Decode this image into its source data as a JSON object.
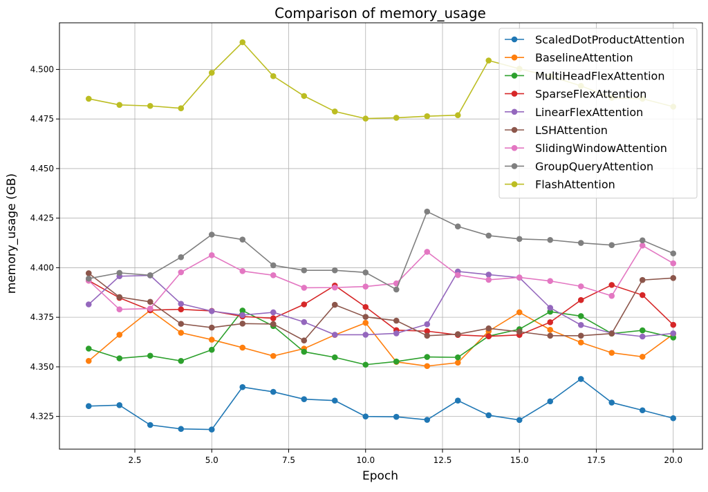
{
  "chart_data": {
    "type": "line",
    "title": "Comparison of memory_usage",
    "xlabel": "Epoch",
    "ylabel": "memory_usage (GB)",
    "xlim": [
      0.05,
      20.95
    ],
    "ylim": [
      4.3085,
      4.5235
    ],
    "xticks": [
      2.5,
      5.0,
      7.5,
      10.0,
      12.5,
      15.0,
      17.5,
      20.0
    ],
    "xtick_labels": [
      "2.5",
      "5.0",
      "7.5",
      "10.0",
      "12.5",
      "15.0",
      "17.5",
      "20.0"
    ],
    "yticks": [
      4.325,
      4.35,
      4.375,
      4.4,
      4.425,
      4.45,
      4.475,
      4.5
    ],
    "ytick_labels": [
      "4.325",
      "4.350",
      "4.375",
      "4.400",
      "4.425",
      "4.450",
      "4.475",
      "4.500"
    ],
    "grid": true,
    "legend_position": "top-right",
    "x": [
      1,
      2,
      3,
      4,
      5,
      6,
      7,
      8,
      9,
      10,
      11,
      12,
      13,
      14,
      15,
      16,
      17,
      18,
      19,
      20
    ],
    "series": [
      {
        "name": "ScaledDotProductAttention",
        "color": "#1f77b4",
        "values": [
          4.3302,
          4.3307,
          4.3207,
          4.3187,
          4.3184,
          4.3398,
          4.3374,
          4.3337,
          4.333,
          4.325,
          4.3248,
          4.3233,
          4.333,
          4.3256,
          4.3232,
          4.3326,
          4.3439,
          4.332,
          4.3281,
          4.3241
        ]
      },
      {
        "name": "BaselineAttention",
        "color": "#ff7f0e",
        "values": [
          4.353,
          4.3662,
          4.3785,
          4.3672,
          4.3637,
          4.3597,
          4.3555,
          4.3592,
          4.3661,
          4.3722,
          4.3525,
          4.3504,
          4.3521,
          4.368,
          4.3775,
          4.3687,
          4.3623,
          4.3571,
          4.3551,
          4.3665
        ]
      },
      {
        "name": "MultiHeadFlexAttention",
        "color": "#2ca02c",
        "values": [
          4.3592,
          4.3543,
          4.3556,
          4.353,
          4.3586,
          4.3784,
          4.3706,
          4.3576,
          4.3548,
          4.3511,
          4.3527,
          4.355,
          4.3548,
          4.3655,
          4.369,
          4.3778,
          4.3756,
          4.3668,
          4.3684,
          4.3648
        ]
      },
      {
        "name": "SparseFlexAttention",
        "color": "#d62728",
        "values": [
          4.3935,
          4.3848,
          4.3786,
          4.379,
          4.3782,
          4.3754,
          4.3745,
          4.3815,
          4.391,
          4.3802,
          4.3685,
          4.368,
          4.3661,
          4.3654,
          4.3661,
          4.3725,
          4.3837,
          4.3913,
          4.3862,
          4.3712
        ]
      },
      {
        "name": "LinearFlexAttention",
        "color": "#9467bd",
        "values": [
          4.3815,
          4.3957,
          4.3961,
          4.3818,
          4.3781,
          4.3761,
          4.3775,
          4.3726,
          4.3662,
          4.3662,
          4.3669,
          4.3715,
          4.3981,
          4.3965,
          4.395,
          4.3798,
          4.3711,
          4.367,
          4.3653,
          4.3669
        ]
      },
      {
        "name": "LSHAttention",
        "color": "#8c564b",
        "values": [
          4.3972,
          4.3852,
          4.3828,
          4.3717,
          4.3698,
          4.3718,
          4.3716,
          4.3633,
          4.3813,
          4.3752,
          4.3733,
          4.3657,
          4.3665,
          4.3694,
          4.3677,
          4.3657,
          4.3657,
          4.3668,
          4.3938,
          4.3948
        ]
      },
      {
        "name": "SlidingWindowAttention",
        "color": "#e377c2",
        "values": [
          4.3935,
          4.379,
          4.3794,
          4.3977,
          4.4063,
          4.3983,
          4.3962,
          4.3899,
          4.39,
          4.3905,
          4.3921,
          4.408,
          4.3963,
          4.3939,
          4.3951,
          4.3933,
          4.3906,
          4.3858,
          4.4112,
          4.4022
        ]
      },
      {
        "name": "GroupQueryAttention",
        "color": "#7f7f7f",
        "values": [
          4.3945,
          4.3974,
          4.3962,
          4.4053,
          4.4167,
          4.4142,
          4.4012,
          4.3987,
          4.3987,
          4.3976,
          4.389,
          4.4283,
          4.4208,
          4.4162,
          4.4145,
          4.414,
          4.4125,
          4.4114,
          4.4138,
          4.4072
        ]
      },
      {
        "name": "FlashAttention",
        "color": "#bcbd22",
        "values": [
          4.4852,
          4.4821,
          4.4816,
          4.4804,
          4.4983,
          4.5137,
          4.4966,
          4.4866,
          4.4788,
          4.4752,
          4.4756,
          4.4764,
          4.4769,
          4.5045,
          4.5003,
          4.4966,
          4.4917,
          4.4857,
          4.4852,
          4.4812
        ]
      }
    ]
  }
}
